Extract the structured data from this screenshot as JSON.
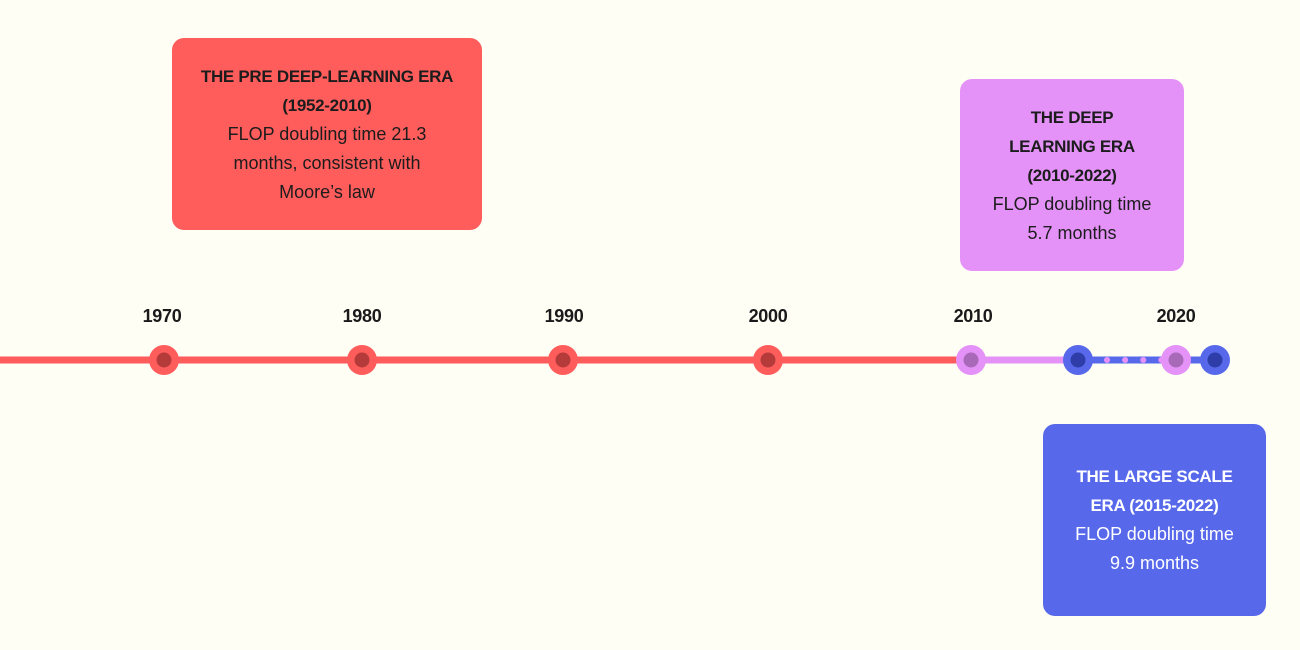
{
  "eras": {
    "pre": {
      "title": "THE PRE DEEP-LEARNING ERA (1952-2010)",
      "description": "FLOP doubling time 21.3 months, consistent with Moore’s law",
      "color": "#FF5C5C"
    },
    "deep": {
      "title": "THE DEEP LEARNING ERA (2010-2022)",
      "description": "FLOP doubling time 5.7 months",
      "color": "#E592F8"
    },
    "large": {
      "title": "THE LARGE SCALE ERA (2015-2022)",
      "description": "FLOP doubling time 9.9 months",
      "color": "#5769EA"
    }
  },
  "timeline": {
    "year_labels": [
      "1970",
      "1980",
      "1990",
      "2000",
      "2010",
      "2020"
    ],
    "colors": {
      "pre_line": "#FF5C5C",
      "pre_dot_inner": "#B53B3B",
      "deep_line": "#E592F8",
      "deep_dot_inner": "#A869B8",
      "large_line": "#5769EA",
      "large_dot_inner": "#2E3DA8"
    }
  }
}
